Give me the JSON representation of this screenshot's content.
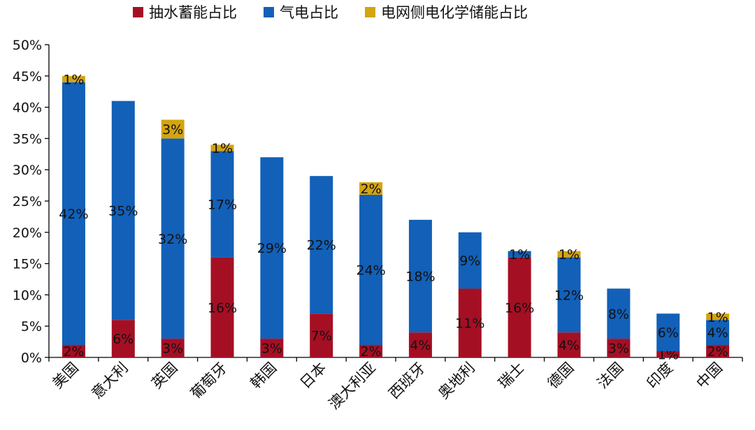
{
  "colors": {
    "pumped_hydro": "#A50F24",
    "gas_power": "#1260B8",
    "grid_electrochemical": "#D4A411",
    "axis": "#000000"
  },
  "legend": [
    {
      "label": "抽水蓄能占比",
      "color_key": "pumped_hydro"
    },
    {
      "label": "气电占比",
      "color_key": "gas_power"
    },
    {
      "label": "电网侧电化学储能占比",
      "color_key": "grid_electrochemical"
    }
  ],
  "chart_data": {
    "type": "bar",
    "stacked": true,
    "categories": [
      "美国",
      "意大利",
      "英国",
      "葡萄牙",
      "韩国",
      "日本",
      "澳大利亚",
      "西班牙",
      "奥地利",
      "瑞士",
      "德国",
      "法国",
      "印度",
      "中国"
    ],
    "series": [
      {
        "name": "抽水蓄能占比",
        "values": [
          2,
          6,
          3,
          16,
          3,
          7,
          2,
          4,
          11,
          16,
          4,
          3,
          1,
          2
        ],
        "labels": [
          "2%",
          "6%",
          "3%",
          "16%",
          "3%",
          "7%",
          "2%",
          "4%",
          "11%",
          "16%",
          "4%",
          "3%",
          "1%",
          "2%"
        ]
      },
      {
        "name": "气电占比",
        "values": [
          42,
          35,
          32,
          17,
          29,
          22,
          24,
          18,
          9,
          1,
          12,
          8,
          6,
          4
        ],
        "labels": [
          "42%",
          "35%",
          "32%",
          "17%",
          "29%",
          "22%",
          "24%",
          "18%",
          "9%",
          "1%",
          "12%",
          "8%",
          "6%",
          "4%"
        ]
      },
      {
        "name": "电网侧电化学储能占比",
        "values": [
          1,
          0,
          3,
          1,
          0,
          0,
          2,
          0,
          0,
          0,
          1,
          0,
          0,
          1
        ],
        "labels": [
          "1%",
          "",
          "3%",
          "1%",
          "",
          "",
          "2%",
          "",
          "",
          "",
          "1%",
          "",
          "",
          "1%"
        ]
      }
    ],
    "ylim": [
      0,
      50
    ],
    "yticks": [
      "0%",
      "5%",
      "10%",
      "15%",
      "20%",
      "25%",
      "30%",
      "35%",
      "40%",
      "45%",
      "50%"
    ],
    "legend_position": "top",
    "grid": false
  }
}
